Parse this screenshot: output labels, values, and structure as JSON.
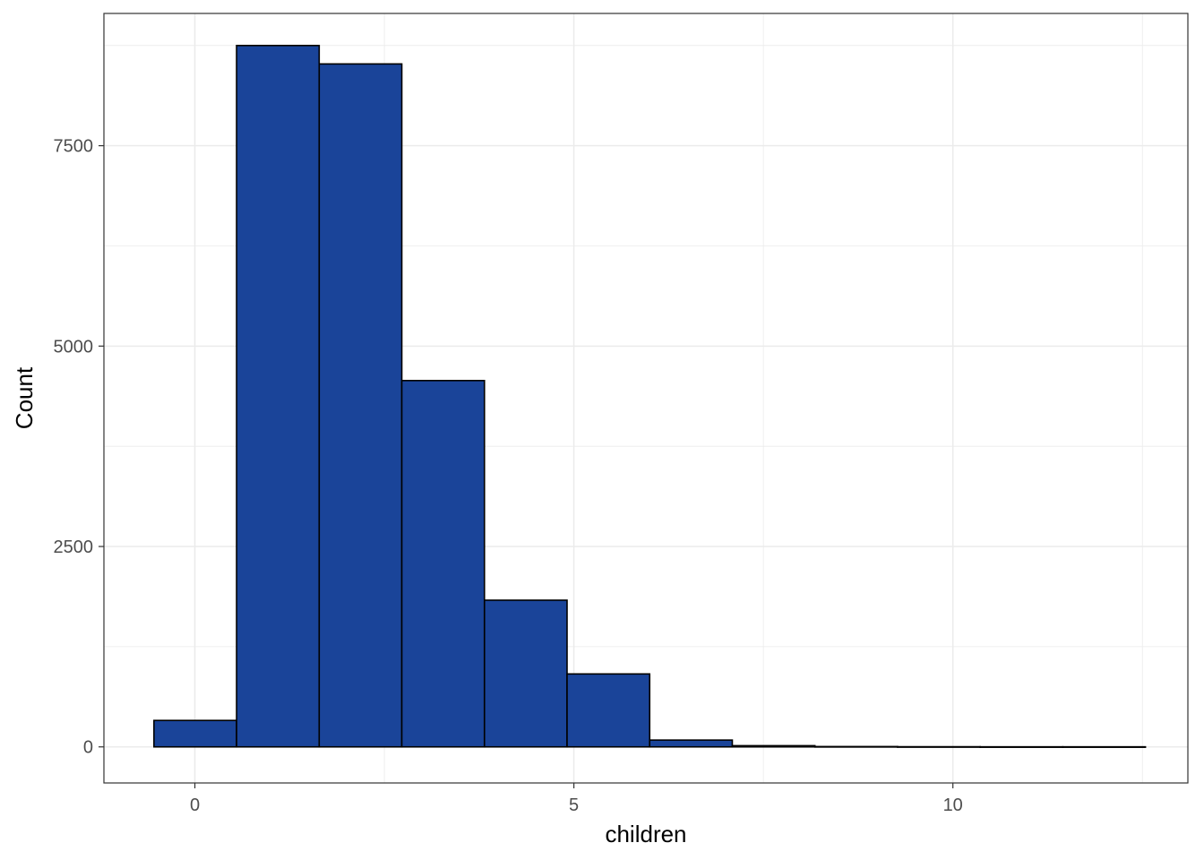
{
  "chart_data": {
    "type": "bar",
    "title": "",
    "xlabel": "children",
    "ylabel": "Count",
    "xlim": [
      -1.2,
      13.1
    ],
    "ylim": [
      -450,
      9150
    ],
    "x_ticks": [
      0,
      5,
      10
    ],
    "y_ticks": [
      0,
      2500,
      5000,
      7500
    ],
    "grid": true,
    "bin_edges": [
      -0.54,
      0.55,
      1.64,
      2.73,
      3.82,
      4.91,
      6.0,
      7.09,
      8.18,
      9.27,
      10.36,
      11.45,
      12.54
    ],
    "values": [
      330,
      8750,
      8520,
      4570,
      1830,
      910,
      85,
      15,
      4,
      2,
      1,
      1
    ],
    "colors": {
      "fill": "#1a4499",
      "outline": "#000000",
      "grid": "#ebebeb",
      "panel_border": "#333333"
    }
  }
}
